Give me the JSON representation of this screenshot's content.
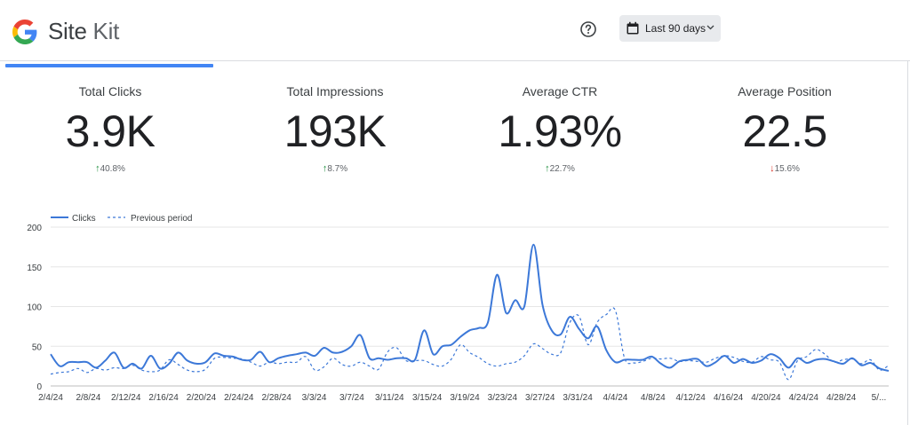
{
  "header": {
    "brand_name": "Site",
    "brand_suffix": "Kit",
    "date_range_label": "Last 90 days",
    "icons": {
      "logo": "google-g-icon",
      "help": "help-circle-icon",
      "calendar": "calendar-icon",
      "dropdown": "chevron-down-icon"
    }
  },
  "colors": {
    "accent": "#4285f4",
    "line": "#3c78d8",
    "up": "#1e8e3e",
    "down": "#d93025"
  },
  "kpis": [
    {
      "label": "Total Clicks",
      "value": "3.9K",
      "delta": "40.8%",
      "direction": "up"
    },
    {
      "label": "Total Impressions",
      "value": "193K",
      "delta": "8.7%",
      "direction": "up"
    },
    {
      "label": "Average CTR",
      "value": "1.93%",
      "delta": "22.7%",
      "direction": "up"
    },
    {
      "label": "Average Position",
      "value": "22.5",
      "delta": "15.6%",
      "direction": "down"
    }
  ],
  "chart_data": {
    "type": "line",
    "legend": [
      "Clicks",
      "Previous period"
    ],
    "legend_position": "top-left",
    "grid": true,
    "ylim": [
      0,
      200
    ],
    "yticks": [
      0,
      50,
      100,
      150,
      200
    ],
    "xticks": [
      "2/4/24",
      "2/8/24",
      "2/12/24",
      "2/16/24",
      "2/20/24",
      "2/24/24",
      "2/28/24",
      "3/3/24",
      "3/7/24",
      "3/11/24",
      "3/15/24",
      "3/19/24",
      "3/23/24",
      "3/27/24",
      "3/31/24",
      "4/4/24",
      "4/8/24",
      "4/12/24",
      "4/16/24",
      "4/20/24",
      "4/24/24",
      "4/28/24",
      "5/..."
    ],
    "series": [
      {
        "name": "Clicks",
        "style": "solid",
        "values": [
          40,
          25,
          30,
          30,
          30,
          23,
          32,
          42,
          23,
          28,
          22,
          38,
          22,
          28,
          42,
          32,
          28,
          30,
          41,
          38,
          37,
          33,
          33,
          43,
          30,
          35,
          38,
          40,
          42,
          38,
          48,
          42,
          43,
          50,
          64,
          35,
          35,
          33,
          35,
          35,
          33,
          70,
          40,
          50,
          52,
          62,
          70,
          73,
          80,
          140,
          92,
          108,
          100,
          178,
          102,
          70,
          65,
          87,
          72,
          60,
          75,
          45,
          30,
          33,
          33,
          33,
          37,
          28,
          23,
          31,
          33,
          34,
          25,
          30,
          38,
          29,
          34,
          29,
          32,
          40,
          35,
          23,
          35,
          29,
          33,
          34,
          31,
          28,
          35,
          26,
          29,
          22,
          19
        ]
      },
      {
        "name": "Previous period",
        "style": "dashed",
        "values": [
          15,
          17,
          18,
          22,
          17,
          22,
          20,
          23,
          22,
          26,
          20,
          18,
          20,
          33,
          27,
          20,
          18,
          21,
          35,
          36,
          35,
          34,
          30,
          25,
          30,
          28,
          30,
          30,
          37,
          20,
          24,
          35,
          27,
          25,
          30,
          25,
          21,
          43,
          48,
          32,
          32,
          32,
          27,
          25,
          34,
          52,
          42,
          36,
          28,
          25,
          28,
          30,
          38,
          53,
          47,
          40,
          42,
          80,
          88,
          52,
          80,
          90,
          95,
          35,
          29,
          31,
          35,
          34,
          35,
          31,
          32,
          31,
          30,
          35,
          38,
          36,
          31,
          30,
          37,
          33,
          30,
          8,
          32,
          37,
          46,
          40,
          30,
          33,
          34,
          28,
          33,
          20,
          26
        ]
      }
    ]
  }
}
